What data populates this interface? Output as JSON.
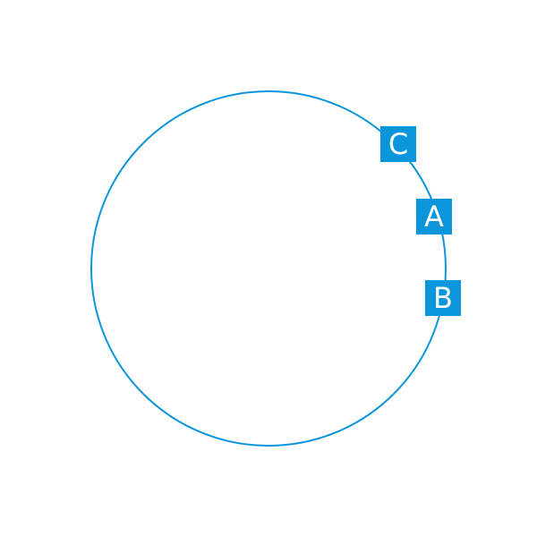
{
  "colors": {
    "accent": "#0b96dc",
    "background": "#ffffff",
    "label_text": "#ffffff"
  },
  "markers": [
    {
      "id": "c",
      "label": "C"
    },
    {
      "id": "a",
      "label": "A"
    },
    {
      "id": "b",
      "label": "B"
    }
  ]
}
